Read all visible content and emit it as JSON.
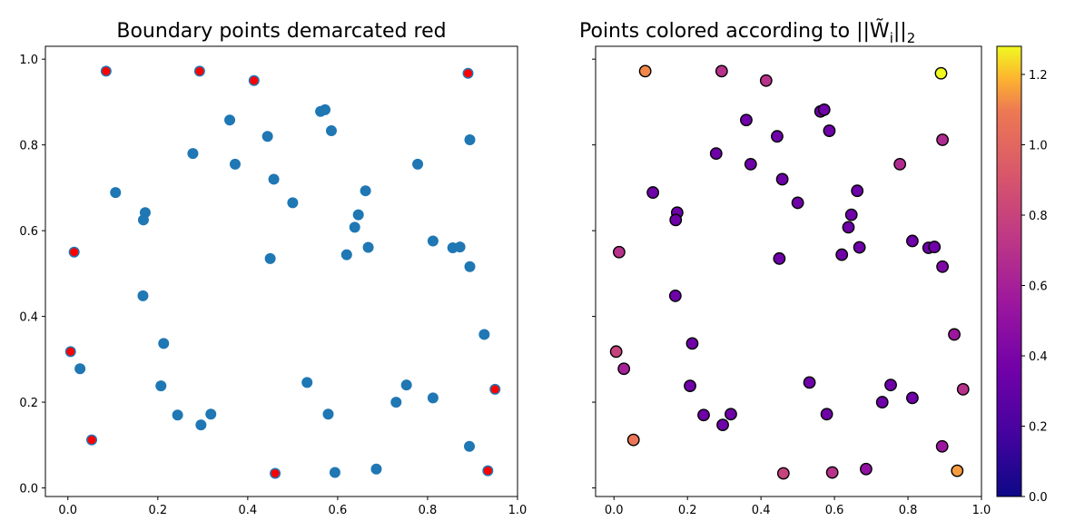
{
  "chart_data": [
    {
      "type": "scatter",
      "title": "Boundary points demarcated red",
      "xlabel": "",
      "ylabel": "",
      "xlim": [
        -0.05,
        1.0
      ],
      "ylim": [
        -0.02,
        1.03
      ],
      "xticks": [
        "0.0",
        "0.2",
        "0.4",
        "0.6",
        "0.8",
        "1.0"
      ],
      "yticks": [
        "0.0",
        "0.2",
        "0.4",
        "0.6",
        "0.8",
        "1.0"
      ],
      "point_color": "#1f77b4",
      "boundary_color": "#ff0000",
      "points": [
        {
          "x": 0.085,
          "y": 0.972,
          "boundary": true
        },
        {
          "x": 0.293,
          "y": 0.972,
          "boundary": true
        },
        {
          "x": 0.414,
          "y": 0.95,
          "boundary": true
        },
        {
          "x": 0.89,
          "y": 0.967,
          "boundary": true
        },
        {
          "x": 0.36,
          "y": 0.858,
          "boundary": false
        },
        {
          "x": 0.444,
          "y": 0.82,
          "boundary": false
        },
        {
          "x": 0.562,
          "y": 0.878,
          "boundary": false
        },
        {
          "x": 0.572,
          "y": 0.882,
          "boundary": false
        },
        {
          "x": 0.586,
          "y": 0.833,
          "boundary": false
        },
        {
          "x": 0.894,
          "y": 0.812,
          "boundary": false
        },
        {
          "x": 0.278,
          "y": 0.78,
          "boundary": false
        },
        {
          "x": 0.372,
          "y": 0.755,
          "boundary": false
        },
        {
          "x": 0.778,
          "y": 0.755,
          "boundary": false
        },
        {
          "x": 0.458,
          "y": 0.72,
          "boundary": false
        },
        {
          "x": 0.106,
          "y": 0.689,
          "boundary": false
        },
        {
          "x": 0.662,
          "y": 0.693,
          "boundary": false
        },
        {
          "x": 0.5,
          "y": 0.665,
          "boundary": false
        },
        {
          "x": 0.172,
          "y": 0.642,
          "boundary": false
        },
        {
          "x": 0.168,
          "y": 0.625,
          "boundary": false
        },
        {
          "x": 0.646,
          "y": 0.637,
          "boundary": false
        },
        {
          "x": 0.638,
          "y": 0.608,
          "boundary": false
        },
        {
          "x": 0.014,
          "y": 0.55,
          "boundary": true
        },
        {
          "x": 0.812,
          "y": 0.576,
          "boundary": false
        },
        {
          "x": 0.856,
          "y": 0.56,
          "boundary": false
        },
        {
          "x": 0.872,
          "y": 0.562,
          "boundary": false
        },
        {
          "x": 0.668,
          "y": 0.561,
          "boundary": false
        },
        {
          "x": 0.62,
          "y": 0.544,
          "boundary": false
        },
        {
          "x": 0.45,
          "y": 0.535,
          "boundary": false
        },
        {
          "x": 0.894,
          "y": 0.516,
          "boundary": false
        },
        {
          "x": 0.167,
          "y": 0.448,
          "boundary": false
        },
        {
          "x": 0.926,
          "y": 0.358,
          "boundary": false
        },
        {
          "x": 0.213,
          "y": 0.337,
          "boundary": false
        },
        {
          "x": 0.006,
          "y": 0.318,
          "boundary": true
        },
        {
          "x": 0.027,
          "y": 0.278,
          "boundary": false
        },
        {
          "x": 0.532,
          "y": 0.246,
          "boundary": false
        },
        {
          "x": 0.753,
          "y": 0.24,
          "boundary": false
        },
        {
          "x": 0.207,
          "y": 0.238,
          "boundary": false
        },
        {
          "x": 0.95,
          "y": 0.23,
          "boundary": true
        },
        {
          "x": 0.812,
          "y": 0.21,
          "boundary": false
        },
        {
          "x": 0.73,
          "y": 0.2,
          "boundary": false
        },
        {
          "x": 0.244,
          "y": 0.17,
          "boundary": false
        },
        {
          "x": 0.318,
          "y": 0.172,
          "boundary": false
        },
        {
          "x": 0.579,
          "y": 0.172,
          "boundary": false
        },
        {
          "x": 0.296,
          "y": 0.147,
          "boundary": false
        },
        {
          "x": 0.053,
          "y": 0.112,
          "boundary": true
        },
        {
          "x": 0.893,
          "y": 0.097,
          "boundary": false
        },
        {
          "x": 0.686,
          "y": 0.044,
          "boundary": false
        },
        {
          "x": 0.934,
          "y": 0.04,
          "boundary": true
        },
        {
          "x": 0.461,
          "y": 0.034,
          "boundary": true
        },
        {
          "x": 0.594,
          "y": 0.036,
          "boundary": false
        }
      ]
    },
    {
      "type": "scatter",
      "title": "Points colored according to ||W̃",
      "title_sub": "i",
      "title_suffix": "||",
      "title_sub2": "2",
      "xlabel": "",
      "ylabel": "",
      "xlim": [
        -0.05,
        1.0
      ],
      "ylim": [
        -0.02,
        1.03
      ],
      "xticks": [
        "0.0",
        "0.2",
        "0.4",
        "0.6",
        "0.8",
        "1.0"
      ],
      "colormap": "plasma",
      "colorbar_range": [
        0.0,
        1.28
      ],
      "colorbar_ticks": [
        "0.0",
        "0.2",
        "0.4",
        "0.6",
        "0.8",
        "1.0",
        "1.2"
      ],
      "points": [
        {
          "x": 0.085,
          "y": 0.972,
          "v": 1.12
        },
        {
          "x": 0.293,
          "y": 0.972,
          "v": 0.7
        },
        {
          "x": 0.414,
          "y": 0.95,
          "v": 0.7
        },
        {
          "x": 0.89,
          "y": 0.967,
          "v": 1.28
        },
        {
          "x": 0.36,
          "y": 0.858,
          "v": 0.35
        },
        {
          "x": 0.444,
          "y": 0.82,
          "v": 0.35
        },
        {
          "x": 0.562,
          "y": 0.878,
          "v": 0.35
        },
        {
          "x": 0.572,
          "y": 0.882,
          "v": 0.35
        },
        {
          "x": 0.586,
          "y": 0.833,
          "v": 0.35
        },
        {
          "x": 0.894,
          "y": 0.812,
          "v": 0.66
        },
        {
          "x": 0.278,
          "y": 0.78,
          "v": 0.35
        },
        {
          "x": 0.372,
          "y": 0.755,
          "v": 0.35
        },
        {
          "x": 0.778,
          "y": 0.755,
          "v": 0.66
        },
        {
          "x": 0.458,
          "y": 0.72,
          "v": 0.35
        },
        {
          "x": 0.106,
          "y": 0.689,
          "v": 0.35
        },
        {
          "x": 0.662,
          "y": 0.693,
          "v": 0.35
        },
        {
          "x": 0.5,
          "y": 0.665,
          "v": 0.35
        },
        {
          "x": 0.172,
          "y": 0.642,
          "v": 0.35
        },
        {
          "x": 0.168,
          "y": 0.625,
          "v": 0.35
        },
        {
          "x": 0.646,
          "y": 0.637,
          "v": 0.35
        },
        {
          "x": 0.638,
          "y": 0.608,
          "v": 0.35
        },
        {
          "x": 0.014,
          "y": 0.55,
          "v": 0.7
        },
        {
          "x": 0.812,
          "y": 0.576,
          "v": 0.35
        },
        {
          "x": 0.856,
          "y": 0.56,
          "v": 0.35
        },
        {
          "x": 0.872,
          "y": 0.562,
          "v": 0.35
        },
        {
          "x": 0.668,
          "y": 0.561,
          "v": 0.35
        },
        {
          "x": 0.62,
          "y": 0.544,
          "v": 0.35
        },
        {
          "x": 0.45,
          "y": 0.535,
          "v": 0.35
        },
        {
          "x": 0.894,
          "y": 0.516,
          "v": 0.42
        },
        {
          "x": 0.167,
          "y": 0.448,
          "v": 0.35
        },
        {
          "x": 0.926,
          "y": 0.358,
          "v": 0.55
        },
        {
          "x": 0.213,
          "y": 0.337,
          "v": 0.35
        },
        {
          "x": 0.006,
          "y": 0.318,
          "v": 0.8
        },
        {
          "x": 0.027,
          "y": 0.278,
          "v": 0.6
        },
        {
          "x": 0.532,
          "y": 0.246,
          "v": 0.35
        },
        {
          "x": 0.753,
          "y": 0.24,
          "v": 0.35
        },
        {
          "x": 0.207,
          "y": 0.238,
          "v": 0.35
        },
        {
          "x": 0.95,
          "y": 0.23,
          "v": 0.7
        },
        {
          "x": 0.812,
          "y": 0.21,
          "v": 0.35
        },
        {
          "x": 0.73,
          "y": 0.2,
          "v": 0.35
        },
        {
          "x": 0.244,
          "y": 0.17,
          "v": 0.35
        },
        {
          "x": 0.318,
          "y": 0.172,
          "v": 0.35
        },
        {
          "x": 0.579,
          "y": 0.172,
          "v": 0.35
        },
        {
          "x": 0.296,
          "y": 0.147,
          "v": 0.35
        },
        {
          "x": 0.053,
          "y": 0.112,
          "v": 1.08
        },
        {
          "x": 0.893,
          "y": 0.097,
          "v": 0.55
        },
        {
          "x": 0.686,
          "y": 0.044,
          "v": 0.5
        },
        {
          "x": 0.934,
          "y": 0.04,
          "v": 1.15
        },
        {
          "x": 0.461,
          "y": 0.034,
          "v": 0.8
        },
        {
          "x": 0.594,
          "y": 0.036,
          "v": 0.7
        }
      ]
    }
  ]
}
